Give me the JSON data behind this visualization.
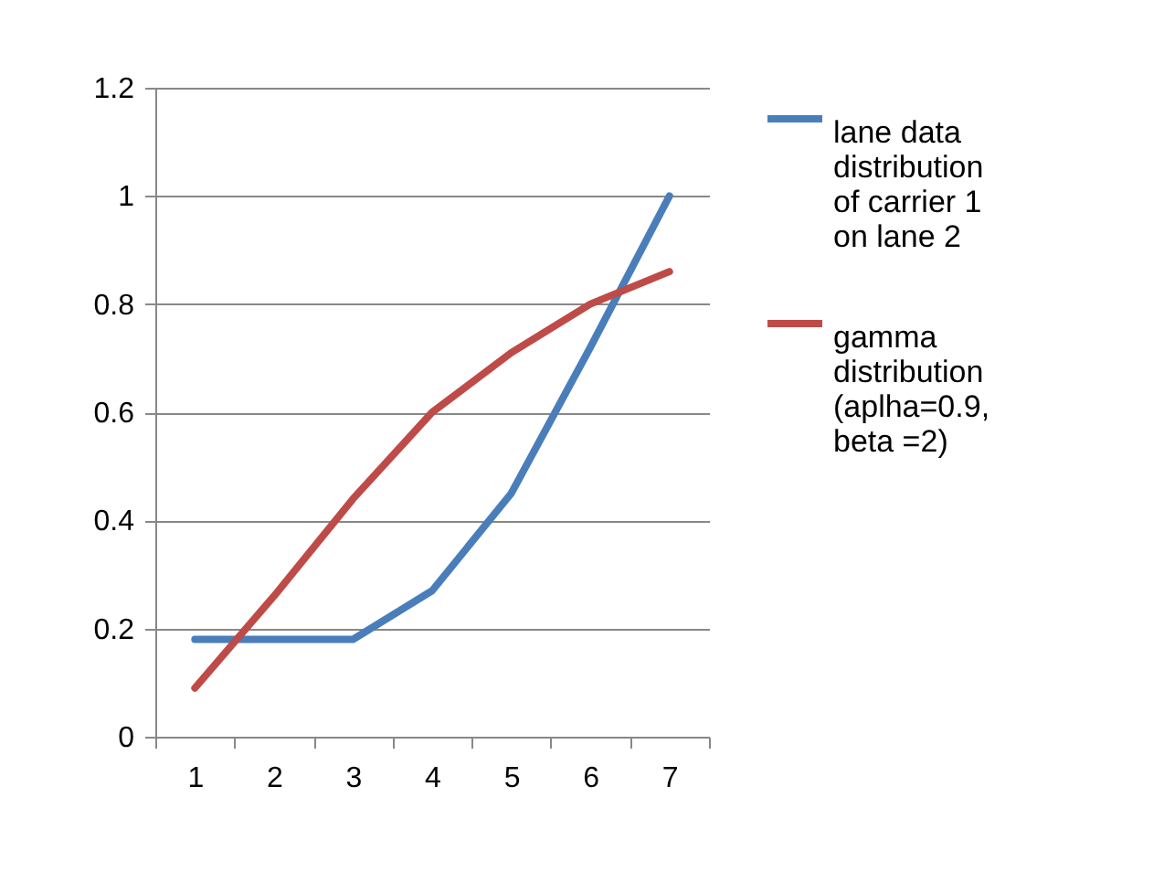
{
  "chart_data": {
    "type": "line",
    "categories": [
      "1",
      "2",
      "3",
      "4",
      "5",
      "6",
      "7"
    ],
    "ylim": [
      0,
      1.2
    ],
    "yticks": [
      0,
      0.2,
      0.4,
      0.6,
      0.8,
      1,
      1.2
    ],
    "grid": "y",
    "legend": "right",
    "marker": "none",
    "line_style": "solid",
    "series": [
      {
        "name": "lane data distribution of carrier 1 on lane 2",
        "color": "#4a7ebb",
        "values": [
          0.18,
          0.18,
          0.18,
          0.27,
          0.45,
          0.72,
          1.0
        ]
      },
      {
        "name": "gamma distribution (aplha=0.9, beta =2)",
        "color": "#be4b48",
        "values": [
          0.09,
          0.26,
          0.44,
          0.6,
          0.71,
          0.8,
          0.86
        ]
      }
    ]
  }
}
